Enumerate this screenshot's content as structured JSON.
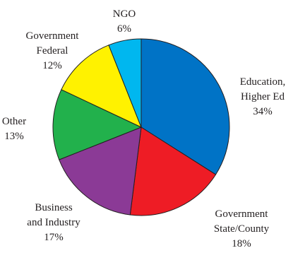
{
  "chart_data": {
    "type": "pie",
    "title": "",
    "start_angle_deg": 0,
    "direction": "clockwise",
    "slices": [
      {
        "label_lines": [
          "Education,",
          "Higher Ed"
        ],
        "value": 34,
        "value_label": "34%",
        "color": "#0073c6"
      },
      {
        "label_lines": [
          "Government",
          "State/County"
        ],
        "value": 18,
        "value_label": "18%",
        "color": "#ee1c25"
      },
      {
        "label_lines": [
          "Business",
          "and Industry"
        ],
        "value": 17,
        "value_label": "17%",
        "color": "#8b3a96"
      },
      {
        "label_lines": [
          "Other"
        ],
        "value": 13,
        "value_label": "13%",
        "color": "#22b14c"
      },
      {
        "label_lines": [
          "Government",
          "Federal"
        ],
        "value": 12,
        "value_label": "12%",
        "color": "#fff200"
      },
      {
        "label_lines": [
          "NGO"
        ],
        "value": 6,
        "value_label": "6%",
        "color": "#00b7ef"
      }
    ]
  }
}
